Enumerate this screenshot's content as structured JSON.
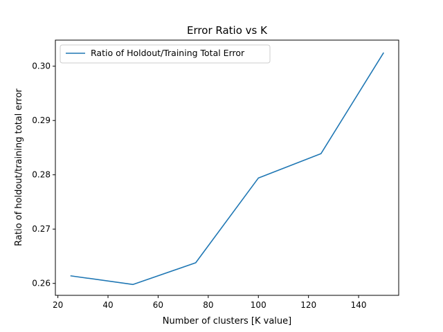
{
  "chart_data": {
    "type": "line",
    "title": "Error Ratio vs K",
    "xlabel": "Number of clusters [K value]",
    "ylabel": "Ratio of holdout/training total error",
    "xlim": [
      19,
      156
    ],
    "ylim": [
      0.2578,
      0.3048
    ],
    "xticks": [
      20,
      40,
      60,
      80,
      100,
      120,
      140
    ],
    "yticks": [
      0.26,
      0.27,
      0.28,
      0.29,
      0.3
    ],
    "ytick_labels": [
      "0.26",
      "0.27",
      "0.28",
      "0.29",
      "0.30"
    ],
    "grid": false,
    "legend_position": "upper-left",
    "series": [
      {
        "name": "Ratio of Holdout/Training Total Error",
        "color": "#1f77b4",
        "x": [
          25,
          50,
          75,
          100,
          125,
          150
        ],
        "y": [
          0.2614,
          0.2598,
          0.2638,
          0.2794,
          0.2839,
          0.3025
        ]
      }
    ]
  }
}
